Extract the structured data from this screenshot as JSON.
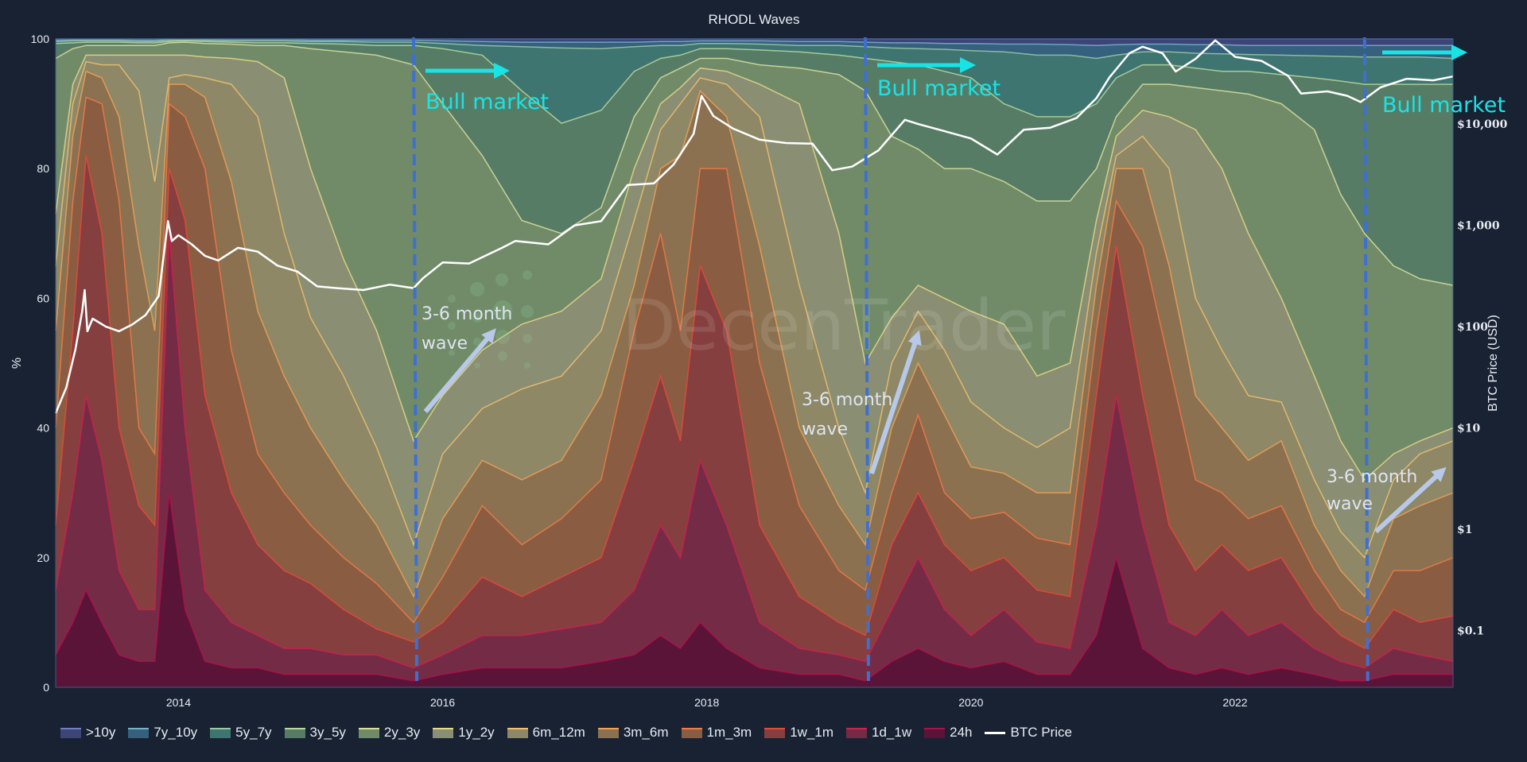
{
  "chart_data": {
    "type": "area",
    "title": "RHODL Waves",
    "ylabel": "%",
    "y2label": "BTC Price (USD)",
    "ylim": [
      0,
      100
    ],
    "xlim": [
      2013.07,
      2023.65
    ],
    "y2_scale": "log",
    "y2lim_log10": [
      -1.56,
      4.84
    ],
    "yticks": [
      "0",
      "20",
      "40",
      "60",
      "80",
      "100"
    ],
    "xticks": [
      "2014",
      "2016",
      "2018",
      "2020",
      "2022"
    ],
    "y2ticks": [
      "$0.1",
      "$1",
      "$10",
      "$100",
      "$1,000",
      "$10,000"
    ],
    "legend_position": "bottom",
    "grid": false,
    "x": [
      2013.07,
      2013.2,
      2013.3,
      2013.42,
      2013.55,
      2013.7,
      2013.82,
      2013.93,
      2014.05,
      2014.2,
      2014.4,
      2014.6,
      2014.8,
      2015.0,
      2015.25,
      2015.5,
      2015.78,
      2016.0,
      2016.3,
      2016.6,
      2016.9,
      2017.2,
      2017.45,
      2017.65,
      2017.8,
      2017.95,
      2018.15,
      2018.4,
      2018.7,
      2019.0,
      2019.2,
      2019.4,
      2019.6,
      2019.8,
      2020.0,
      2020.25,
      2020.5,
      2020.75,
      2020.95,
      2021.1,
      2021.3,
      2021.5,
      2021.7,
      2021.9,
      2022.1,
      2022.35,
      2022.6,
      2022.8,
      2022.98,
      2023.2,
      2023.4,
      2023.65
    ],
    "stack_note": "cumulative % (top of each band, stacked from 24h upward; >10y fills to 100)",
    "series": [
      {
        "name": "24h",
        "color": "#5a1438",
        "line": "#b0104a",
        "cumulative": [
          5,
          10,
          15,
          10,
          5,
          4,
          4,
          30,
          12,
          4,
          3,
          3,
          2,
          2,
          2,
          2,
          1,
          2,
          3,
          3,
          3,
          4,
          5,
          8,
          6,
          10,
          6,
          3,
          2,
          2,
          1,
          4,
          6,
          4,
          3,
          4,
          2,
          2,
          8,
          20,
          6,
          3,
          2,
          3,
          2,
          3,
          2,
          1,
          1,
          2,
          2,
          2
        ]
      },
      {
        "name": "1d_1w",
        "color": "#742c46",
        "line": "#d02050",
        "cumulative": [
          15,
          30,
          45,
          35,
          18,
          12,
          12,
          70,
          40,
          15,
          10,
          8,
          6,
          6,
          5,
          5,
          3,
          5,
          8,
          8,
          9,
          10,
          15,
          25,
          20,
          35,
          25,
          10,
          6,
          5,
          4,
          12,
          20,
          12,
          8,
          12,
          7,
          6,
          25,
          45,
          25,
          10,
          8,
          12,
          8,
          10,
          6,
          4,
          3,
          6,
          5,
          4
        ]
      },
      {
        "name": "1w_1m",
        "color": "#853f3e",
        "line": "#e8483c",
        "cumulative": [
          25,
          55,
          82,
          70,
          40,
          28,
          25,
          80,
          72,
          45,
          30,
          22,
          18,
          16,
          12,
          9,
          7,
          10,
          17,
          14,
          17,
          20,
          35,
          48,
          38,
          65,
          55,
          25,
          14,
          10,
          8,
          22,
          30,
          22,
          18,
          20,
          15,
          14,
          45,
          68,
          45,
          25,
          18,
          22,
          18,
          20,
          12,
          8,
          6,
          12,
          10,
          11
        ]
      },
      {
        "name": "1m_3m",
        "color": "#8a5d42",
        "line": "#f07a48",
        "cumulative": [
          40,
          75,
          91,
          90,
          75,
          40,
          36,
          90,
          88,
          80,
          52,
          36,
          30,
          25,
          20,
          16,
          10,
          17,
          28,
          22,
          26,
          32,
          55,
          70,
          55,
          80,
          80,
          50,
          28,
          18,
          15,
          30,
          42,
          30,
          26,
          27,
          23,
          22,
          55,
          75,
          68,
          50,
          32,
          30,
          26,
          28,
          18,
          12,
          10,
          18,
          18,
          20
        ]
      },
      {
        "name": "3m_6m",
        "color": "#8c7150",
        "line": "#f0a058",
        "cumulative": [
          55,
          85,
          95,
          94,
          88,
          68,
          55,
          93,
          93,
          91,
          78,
          58,
          48,
          40,
          32,
          25,
          14,
          26,
          35,
          32,
          35,
          45,
          62,
          80,
          82,
          92,
          88,
          68,
          40,
          28,
          22,
          40,
          50,
          42,
          34,
          33,
          30,
          30,
          62,
          80,
          80,
          65,
          45,
          40,
          35,
          38,
          25,
          18,
          14,
          26,
          28,
          30
        ]
      },
      {
        "name": "6m_12m",
        "color": "#8e8866",
        "line": "#f0c070",
        "cumulative": [
          65,
          90,
          96.5,
          96,
          96,
          92,
          78,
          94,
          94.5,
          94,
          93,
          88,
          70,
          57,
          48,
          37,
          22,
          36,
          43,
          46,
          48,
          55,
          72,
          86,
          90,
          94,
          93,
          88,
          62,
          40,
          30,
          50,
          58,
          52,
          44,
          40,
          37,
          40,
          67,
          82,
          85,
          80,
          60,
          52,
          45,
          44,
          32,
          24,
          20,
          32,
          36,
          38
        ]
      },
      {
        "name": "1y_2y",
        "color": "#8a8e72",
        "line": "#e8d88a",
        "cumulative": [
          73,
          93,
          97.5,
          97.5,
          97.5,
          97.5,
          97.5,
          97.5,
          97.5,
          97.2,
          97,
          96.5,
          94,
          80,
          66,
          55,
          38,
          45,
          52,
          56,
          58,
          63,
          80,
          90,
          92.5,
          95.5,
          95,
          93,
          90,
          70,
          50,
          57,
          62,
          60,
          58,
          56,
          48,
          50,
          72,
          85,
          89,
          88,
          86,
          80,
          70,
          60,
          48,
          38,
          32,
          36,
          38,
          40
        ]
      },
      {
        "name": "2y_3y",
        "color": "#718b69",
        "line": "#d8e0a0",
        "cumulative": [
          97,
          98.5,
          99,
          99,
          99,
          99,
          99,
          99.4,
          99.5,
          99.3,
          99.2,
          99,
          99,
          98.5,
          98,
          97.5,
          96,
          90,
          82,
          72,
          70,
          74,
          88,
          94,
          95.5,
          97,
          97,
          96,
          95.5,
          94.5,
          92,
          85,
          83,
          80,
          80,
          78,
          75,
          75,
          80,
          88,
          93,
          93,
          92.5,
          92,
          91.5,
          90,
          86,
          76,
          70,
          65,
          63,
          62
        ]
      },
      {
        "name": "3y_5y",
        "color": "#577c66",
        "line": "#b8d8a0",
        "cumulative": [
          99.3,
          99.4,
          99.5,
          99.5,
          99.5,
          99.4,
          99.4,
          99.6,
          99.7,
          99.6,
          99.5,
          99.4,
          99.4,
          99.3,
          99.2,
          99,
          99,
          98.5,
          97.5,
          92,
          87,
          89,
          95,
          97,
          97.5,
          98.5,
          98.5,
          98.3,
          98,
          97.5,
          97,
          96.5,
          96,
          95,
          94,
          90,
          88,
          88,
          90,
          94,
          96,
          96,
          95.5,
          95,
          95,
          94.5,
          94,
          93.5,
          93,
          93,
          93,
          93
        ]
      },
      {
        "name": "5y_7y",
        "color": "#3f7570",
        "line": "#9cc8a8",
        "cumulative": [
          99.6,
          99.7,
          99.7,
          99.7,
          99.7,
          99.6,
          99.6,
          99.8,
          99.8,
          99.8,
          99.7,
          99.7,
          99.7,
          99.6,
          99.6,
          99.5,
          99.5,
          99.3,
          99,
          98.8,
          98.6,
          98.5,
          98.8,
          99,
          99,
          99.3,
          99.3,
          99.2,
          99,
          99,
          98.8,
          98.6,
          98.5,
          98.4,
          98.2,
          98,
          97.5,
          97.5,
          97,
          97.5,
          98,
          98,
          97.8,
          97.7,
          97.6,
          97.5,
          97.4,
          97.3,
          97.2,
          97.2,
          97.2,
          97
        ]
      },
      {
        "name": "7y_10y",
        "color": "#35607e",
        "line": "#7ab0c8",
        "cumulative": [
          99.8,
          99.85,
          99.85,
          99.85,
          99.85,
          99.8,
          99.8,
          99.9,
          99.9,
          99.9,
          99.9,
          99.9,
          99.9,
          99.8,
          99.8,
          99.8,
          99.8,
          99.7,
          99.6,
          99.5,
          99.5,
          99.5,
          99.5,
          99.6,
          99.6,
          99.7,
          99.7,
          99.7,
          99.6,
          99.6,
          99.5,
          99.4,
          99.4,
          99.3,
          99.3,
          99.2,
          99.2,
          99.1,
          99,
          99.1,
          99.2,
          99.2,
          99.1,
          99.1,
          99,
          99,
          99,
          99,
          99,
          99,
          99,
          99
        ]
      },
      {
        "name": ">10y",
        "color": "#3c4478",
        "line": "#7080c0",
        "cumulative": [
          100,
          100,
          100,
          100,
          100,
          100,
          100,
          100,
          100,
          100,
          100,
          100,
          100,
          100,
          100,
          100,
          100,
          100,
          100,
          100,
          100,
          100,
          100,
          100,
          100,
          100,
          100,
          100,
          100,
          100,
          100,
          100,
          100,
          100,
          100,
          100,
          100,
          100,
          100,
          100,
          100,
          100,
          100,
          100,
          100,
          100,
          100,
          100,
          100,
          100,
          100,
          100
        ]
      }
    ],
    "btc_price": {
      "name": "BTC Price",
      "color": "#ffffff",
      "x": [
        2013.07,
        2013.15,
        2013.22,
        2013.27,
        2013.29,
        2013.31,
        2013.35,
        2013.45,
        2013.55,
        2013.65,
        2013.75,
        2013.85,
        2013.92,
        2013.95,
        2014.0,
        2014.1,
        2014.2,
        2014.3,
        2014.45,
        2014.6,
        2014.75,
        2014.9,
        2015.05,
        2015.2,
        2015.4,
        2015.6,
        2015.78,
        2015.85,
        2016.0,
        2016.2,
        2016.45,
        2016.55,
        2016.8,
        2017.0,
        2017.2,
        2017.4,
        2017.6,
        2017.75,
        2017.9,
        2017.96,
        2018.05,
        2018.2,
        2018.4,
        2018.6,
        2018.8,
        2018.95,
        2019.1,
        2019.3,
        2019.5,
        2019.6,
        2019.8,
        2020.0,
        2020.2,
        2020.4,
        2020.6,
        2020.8,
        2020.95,
        2021.05,
        2021.2,
        2021.3,
        2021.45,
        2021.55,
        2021.7,
        2021.85,
        2022.0,
        2022.2,
        2022.4,
        2022.5,
        2022.7,
        2022.85,
        2022.95,
        2023.1,
        2023.3,
        2023.5,
        2023.65
      ],
      "y": [
        14,
        25,
        60,
        140,
        230,
        90,
        120,
        100,
        90,
        105,
        130,
        200,
        1100,
        700,
        800,
        650,
        500,
        450,
        600,
        550,
        400,
        350,
        250,
        240,
        230,
        260,
        240,
        300,
        430,
        420,
        600,
        700,
        650,
        1000,
        1100,
        2500,
        2600,
        4000,
        8000,
        19000,
        12000,
        9000,
        7000,
        6500,
        6400,
        3500,
        3800,
        5500,
        11000,
        10000,
        8500,
        7200,
        5000,
        8800,
        9200,
        11500,
        18000,
        29000,
        50000,
        58000,
        50000,
        33000,
        44000,
        67000,
        46000,
        42000,
        30000,
        20000,
        21000,
        19000,
        16500,
        23000,
        28000,
        27000,
        29500
      ]
    }
  },
  "legend": [
    ">10y",
    "7y_10y",
    "5y_7y",
    "3y_5y",
    "2y_3y",
    "1y_2y",
    "6m_12m",
    "3m_6m",
    "1m_3m",
    "1w_1m",
    "1d_1w",
    "24h",
    "BTC Price"
  ],
  "annotations": {
    "bull_market": [
      "Bull market",
      "Bull market",
      "Bull market"
    ],
    "wave_line1": [
      "3-6 month",
      "3-6 month",
      "3-6 month"
    ],
    "wave_line2": [
      "wave",
      "wave",
      "wave"
    ],
    "bull_color": "#18e4e6",
    "wave_arrow_color": "#b8c8e8",
    "halving_line_color": "#3f6fd0",
    "halving_lines_x": [
      2015.78,
      2019.2,
      2022.98
    ]
  },
  "watermark": "DecenTrader"
}
